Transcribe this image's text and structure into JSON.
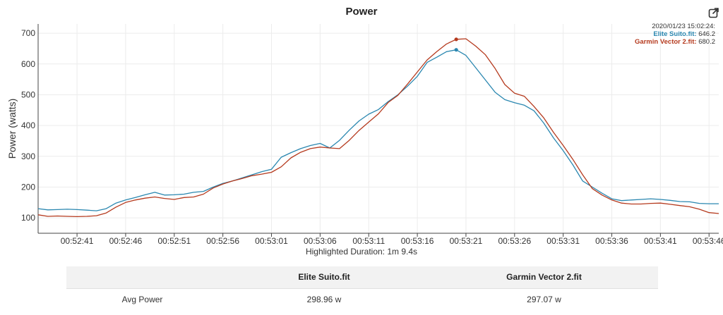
{
  "title": "Power",
  "footer_note": "Highlighted Duration: 1m 9.4s",
  "tooltip": {
    "time": "2020/01/23 15:02:24:",
    "rows": [
      {
        "name": "Elite Suito.fit:",
        "value": "646.2",
        "color": "#2a87b0"
      },
      {
        "name": "Garmin Vector 2.fit:",
        "value": "680.2",
        "color": "#b53a1e"
      }
    ]
  },
  "table": {
    "headers": [
      "",
      "Elite Suito.fit",
      "Garmin Vector 2.fit"
    ],
    "rows": [
      {
        "label": "Avg Power",
        "values": [
          "298.96 w",
          "297.07 w"
        ]
      }
    ]
  },
  "icons": {
    "export": "export-icon"
  },
  "chart_data": {
    "type": "line",
    "title": "Power",
    "xlabel": "",
    "ylabel": "Power (watts)",
    "ylim": [
      50,
      730
    ],
    "xlim": [
      "00:52:37",
      "00:53:47"
    ],
    "x_ticks": [
      "00:52:41",
      "00:52:46",
      "00:52:51",
      "00:52:56",
      "00:53:01",
      "00:53:06",
      "00:53:11",
      "00:53:16",
      "00:53:21",
      "00:53:26",
      "00:53:31",
      "00:53:36",
      "00:53:41",
      "00:53:46"
    ],
    "y_ticks": [
      100,
      200,
      300,
      400,
      500,
      600,
      700
    ],
    "grid": true,
    "highlight_x": "00:53:20",
    "x": [
      "00:52:37",
      "00:52:38",
      "00:52:39",
      "00:52:40",
      "00:52:41",
      "00:52:42",
      "00:52:43",
      "00:52:44",
      "00:52:45",
      "00:52:46",
      "00:52:47",
      "00:52:48",
      "00:52:49",
      "00:52:50",
      "00:52:51",
      "00:52:52",
      "00:52:53",
      "00:52:54",
      "00:52:55",
      "00:52:56",
      "00:52:57",
      "00:52:58",
      "00:52:59",
      "00:53:00",
      "00:53:01",
      "00:53:02",
      "00:53:03",
      "00:53:04",
      "00:53:05",
      "00:53:06",
      "00:53:07",
      "00:53:08",
      "00:53:09",
      "00:53:10",
      "00:53:11",
      "00:53:12",
      "00:53:13",
      "00:53:14",
      "00:53:15",
      "00:53:16",
      "00:53:17",
      "00:53:18",
      "00:53:19",
      "00:53:20",
      "00:53:21",
      "00:53:22",
      "00:53:23",
      "00:53:24",
      "00:53:25",
      "00:53:26",
      "00:53:27",
      "00:53:28",
      "00:53:29",
      "00:53:30",
      "00:53:31",
      "00:53:32",
      "00:53:33",
      "00:53:34",
      "00:53:35",
      "00:53:36",
      "00:53:37",
      "00:53:38",
      "00:53:39",
      "00:53:40",
      "00:53:41",
      "00:53:42",
      "00:53:43",
      "00:53:44",
      "00:53:45",
      "00:53:46",
      "00:53:47"
    ],
    "series": [
      {
        "name": "Elite Suito.fit",
        "color": "#2a87b0",
        "values": [
          130,
          126,
          127,
          128,
          127,
          125,
          123,
          130,
          148,
          158,
          166,
          175,
          183,
          174,
          175,
          177,
          183,
          186,
          200,
          212,
          220,
          230,
          240,
          250,
          258,
          297,
          312,
          325,
          335,
          342,
          327,
          352,
          385,
          415,
          437,
          452,
          478,
          500,
          528,
          560,
          605,
          622,
          640,
          646,
          628,
          588,
          548,
          508,
          484,
          474,
          466,
          448,
          408,
          360,
          318,
          272,
          220,
          200,
          180,
          162,
          156,
          158,
          160,
          162,
          160,
          157,
          153,
          152,
          147,
          146,
          146
        ]
      },
      {
        "name": "Garmin Vector 2.fit",
        "color": "#b53a1e",
        "values": [
          110,
          105,
          106,
          105,
          104,
          105,
          107,
          116,
          135,
          150,
          158,
          164,
          168,
          163,
          160,
          166,
          168,
          177,
          197,
          210,
          220,
          228,
          237,
          242,
          248,
          266,
          295,
          313,
          325,
          330,
          327,
          325,
          352,
          384,
          411,
          438,
          475,
          498,
          535,
          574,
          613,
          640,
          665,
          680,
          682,
          658,
          630,
          585,
          533,
          505,
          495,
          462,
          425,
          378,
          335,
          290,
          240,
          195,
          174,
          158,
          148,
          145,
          145,
          147,
          148,
          144,
          140,
          136,
          128,
          117,
          114
        ]
      }
    ]
  }
}
